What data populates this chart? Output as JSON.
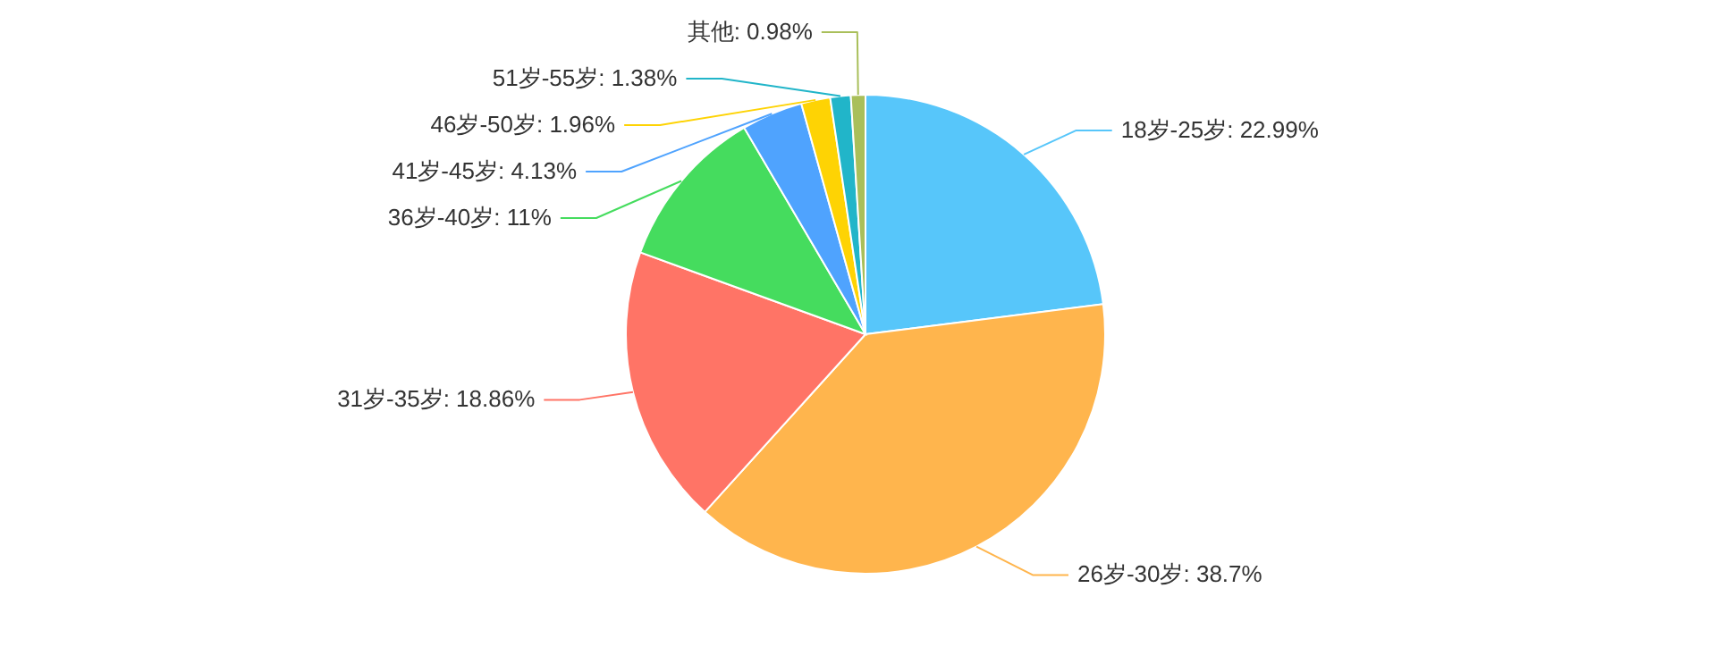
{
  "chart_data": {
    "type": "pie",
    "categories": [
      "18岁-25岁",
      "26岁-30岁",
      "31岁-35岁",
      "36岁-40岁",
      "41岁-45岁",
      "46岁-50岁",
      "51岁-55岁",
      "其他"
    ],
    "values": [
      22.99,
      38.7,
      18.86,
      11,
      4.13,
      1.96,
      1.38,
      0.98
    ],
    "value_labels": [
      "22.99%",
      "38.7%",
      "18.86%",
      "11%",
      "4.13%",
      "1.96%",
      "1.38%",
      "0.98%"
    ],
    "colors": [
      "#57c6fa",
      "#ffb54d",
      "#ff7466",
      "#45dc5e",
      "#4fa3fe",
      "#fed304",
      "#21b5c9",
      "#a9bf5a"
    ]
  }
}
